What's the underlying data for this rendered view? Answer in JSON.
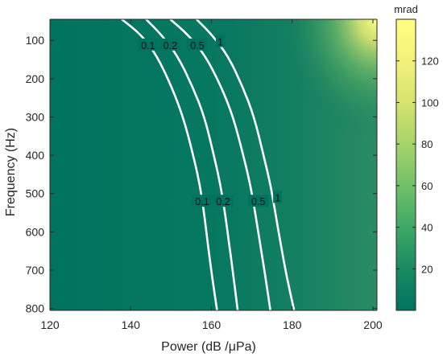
{
  "chart_data": {
    "type": "heatmap",
    "xlabel": "Power (dB /μPa)",
    "ylabel": "Frequency (Hz)",
    "colorbar_label": "mrad",
    "xlim": [
      120,
      201
    ],
    "ylim": [
      45,
      805
    ],
    "y_reversed": true,
    "x_ticks": [
      120,
      140,
      160,
      180,
      200
    ],
    "x_tick_labels": [
      "120",
      "140",
      "160",
      "180",
      "200"
    ],
    "y_ticks": [
      100,
      200,
      300,
      400,
      500,
      600,
      700,
      800
    ],
    "y_tick_labels": [
      "100",
      "200",
      "300",
      "400",
      "500",
      "600",
      "700",
      "800"
    ],
    "colorbar_range": [
      0,
      140
    ],
    "colorbar_ticks": [
      20,
      40,
      60,
      80,
      100,
      120
    ],
    "colorbar_tick_labels": [
      "20",
      "40",
      "60",
      "80",
      "100",
      "120"
    ],
    "colormap": [
      "#00735f",
      "#1a8a62",
      "#3ea866",
      "#72c169",
      "#a6d46a",
      "#d6e36e",
      "#f2f27a",
      "#ffff80"
    ],
    "max_value_location": "top-right",
    "contours": [
      {
        "level": "0.1",
        "label": "0.1",
        "points": [
          [
            137.8,
            45
          ],
          [
            142.6,
            85
          ],
          [
            146.5,
            140
          ],
          [
            150.1,
            220
          ],
          [
            153,
            300
          ],
          [
            155.5,
            400
          ],
          [
            157.2,
            480
          ],
          [
            158.3,
            560
          ],
          [
            159.2,
            640
          ],
          [
            160.2,
            720
          ],
          [
            161.4,
            805
          ]
        ]
      },
      {
        "level": "0.2",
        "label": "0.2",
        "points": [
          [
            143.8,
            45
          ],
          [
            147.6,
            85
          ],
          [
            151.6,
            140
          ],
          [
            155.3,
            220
          ],
          [
            158.3,
            300
          ],
          [
            160.6,
            400
          ],
          [
            162.3,
            480
          ],
          [
            163.5,
            560
          ],
          [
            164.5,
            640
          ],
          [
            165.5,
            720
          ],
          [
            166.5,
            805
          ]
        ]
      },
      {
        "level": "0.5",
        "label": "0.5",
        "points": [
          [
            149.8,
            45
          ],
          [
            154.2,
            85
          ],
          [
            158.5,
            140
          ],
          [
            162.4,
            220
          ],
          [
            165.4,
            300
          ],
          [
            167.9,
            400
          ],
          [
            169.7,
            480
          ],
          [
            171,
            560
          ],
          [
            172.2,
            640
          ],
          [
            173.4,
            720
          ],
          [
            174.6,
            805
          ]
        ]
      },
      {
        "level": "1",
        "label": "1",
        "points": [
          [
            156.3,
            45
          ],
          [
            160.1,
            85
          ],
          [
            164.1,
            140
          ],
          [
            167.7,
            220
          ],
          [
            170.6,
            300
          ],
          [
            172.9,
            400
          ],
          [
            174.7,
            480
          ],
          [
            176,
            560
          ],
          [
            177.3,
            640
          ],
          [
            178.7,
            720
          ],
          [
            180.5,
            805
          ]
        ]
      }
    ],
    "contour_labels": [
      {
        "text": "0.1",
        "x": 144.3,
        "y": 114
      },
      {
        "text": "0.2",
        "x": 149.8,
        "y": 114
      },
      {
        "text": "0.5",
        "x": 156.5,
        "y": 114
      },
      {
        "text": "1",
        "x": 162.2,
        "y": 105
      },
      {
        "text": "0.1",
        "x": 157.7,
        "y": 522
      },
      {
        "text": "0.2",
        "x": 162.9,
        "y": 522
      },
      {
        "text": "0.5",
        "x": 171.6,
        "y": 522
      },
      {
        "text": "1",
        "x": 176.4,
        "y": 512
      }
    ]
  }
}
